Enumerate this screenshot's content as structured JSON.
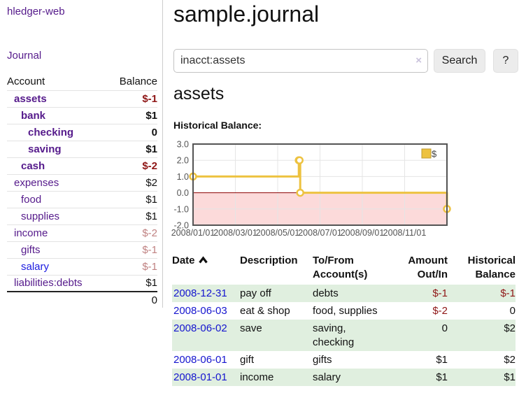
{
  "app": {
    "brand": "hledger-web",
    "nav_journal": "Journal"
  },
  "sidebar": {
    "header": {
      "account": "Account",
      "balance": "Balance"
    },
    "accounts": [
      {
        "name": "assets",
        "level": 1,
        "balance": "$-1",
        "matched": true,
        "balance_style": "neg-strong",
        "link_state": "visited"
      },
      {
        "name": "bank",
        "level": 2,
        "balance": "$1",
        "matched": true,
        "balance_style": "pos",
        "link_state": "visited"
      },
      {
        "name": "checking",
        "level": 3,
        "balance": "0",
        "matched": true,
        "balance_style": "pos",
        "link_state": "visited"
      },
      {
        "name": "saving",
        "level": 3,
        "balance": "$1",
        "matched": true,
        "balance_style": "pos",
        "link_state": "visited"
      },
      {
        "name": "cash",
        "level": 2,
        "balance": "$-2",
        "matched": true,
        "balance_style": "neg-strong",
        "link_state": "visited"
      },
      {
        "name": "expenses",
        "level": 1,
        "balance": "$2",
        "matched": false,
        "balance_style": "pos",
        "link_state": "visited"
      },
      {
        "name": "food",
        "level": 2,
        "balance": "$1",
        "matched": false,
        "balance_style": "pos",
        "link_state": "visited"
      },
      {
        "name": "supplies",
        "level": 2,
        "balance": "$1",
        "matched": false,
        "balance_style": "pos",
        "link_state": "visited"
      },
      {
        "name": "income",
        "level": 1,
        "balance": "$-2",
        "matched": false,
        "balance_style": "neg-soft",
        "link_state": "visited"
      },
      {
        "name": "gifts",
        "level": 2,
        "balance": "$-1",
        "matched": false,
        "balance_style": "neg-soft",
        "link_state": "visited"
      },
      {
        "name": "salary",
        "level": 2,
        "balance": "$-1",
        "matched": false,
        "balance_style": "neg-soft",
        "link_state": "unvisited"
      },
      {
        "name": "liabilities:debts",
        "level": 1,
        "balance": "$1",
        "matched": false,
        "balance_style": "pos",
        "link_state": "visited"
      }
    ],
    "total": "0"
  },
  "header": {
    "title": "sample.journal"
  },
  "search": {
    "query": "inacct:assets",
    "clear_icon": "×",
    "button": "Search",
    "help_button": "?"
  },
  "register": {
    "heading": "assets",
    "chart_label": "Historical Balance:"
  },
  "chart_data": {
    "type": "line",
    "title": "Historical Balance",
    "account": "assets",
    "step": true,
    "legend": [
      {
        "label": "$",
        "color": "#edc240"
      }
    ],
    "legend_position": "top-right",
    "grid": true,
    "xlim": [
      "2008-01-01",
      "2008-12-31"
    ],
    "ylim": [
      -2,
      3
    ],
    "x_ticks": [
      "2008/01/01",
      "2008/03/01",
      "2008/05/01",
      "2008/07/01",
      "2008/09/01",
      "2008/11/01"
    ],
    "y_ticks": [
      3.0,
      2.0,
      1.0,
      0.0,
      -1.0,
      -2.0
    ],
    "negative_region": {
      "below": 0,
      "fill": "#fcdada",
      "zero_line_color": "#8b0000"
    },
    "series": [
      {
        "name": "$",
        "color": "#edc240",
        "points": [
          [
            "2008-01-01",
            1
          ],
          [
            "2008-06-01",
            2
          ],
          [
            "2008-06-02",
            2
          ],
          [
            "2008-06-03",
            0
          ],
          [
            "2008-12-31",
            -1
          ]
        ]
      }
    ]
  },
  "table": {
    "headers": [
      {
        "label": "Date",
        "sortable": true,
        "sort": "asc"
      },
      {
        "label": "Description"
      },
      {
        "label": "To/From Account(s)"
      },
      {
        "label": "Amount Out/In",
        "align": "right"
      },
      {
        "label": "Historical Balance",
        "align": "right"
      }
    ],
    "rows": [
      {
        "date": "2008-12-31",
        "description": "pay off",
        "accounts": "debts",
        "amount": "$-1",
        "balance": "$-1",
        "amount_neg": true,
        "balance_neg": true
      },
      {
        "date": "2008-06-03",
        "description": "eat & shop",
        "accounts": "food, supplies",
        "amount": "$-2",
        "balance": "0",
        "amount_neg": true,
        "balance_neg": false
      },
      {
        "date": "2008-06-02",
        "description": "save",
        "accounts": "saving, checking",
        "amount": "0",
        "balance": "$2",
        "amount_neg": false,
        "balance_neg": false
      },
      {
        "date": "2008-06-01",
        "description": "gift",
        "accounts": "gifts",
        "amount": "$1",
        "balance": "$2",
        "amount_neg": false,
        "balance_neg": false
      },
      {
        "date": "2008-01-01",
        "description": "income",
        "accounts": "salary",
        "amount": "$1",
        "balance": "$1",
        "amount_neg": false,
        "balance_neg": false
      }
    ]
  },
  "colors": {
    "accent_gold": "#edc240",
    "negative_strong": "#8f1717",
    "negative_soft": "#c08282",
    "link_purple": "#551a8b",
    "link_blue": "#1b1be0",
    "date_link_blue": "#1515cf",
    "row_green": "#e0efdf",
    "chart_negative_fill": "#fcdada",
    "chart_zero_line": "#8b0000",
    "chart_border": "#545454",
    "chart_grid": "#e5e5e5"
  }
}
